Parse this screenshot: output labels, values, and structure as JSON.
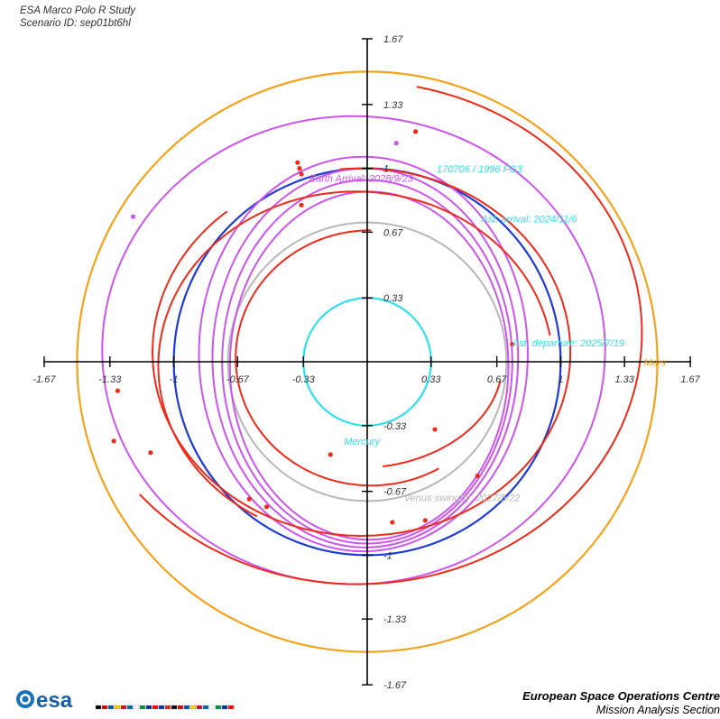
{
  "header": {
    "study": "ESA Marco Polo R Study",
    "scenario": "Scenario ID: sep01bt6hl"
  },
  "footer": {
    "org": "European Space Operations Centre",
    "section": "Mission Analysis Section",
    "logo_text": "esa"
  },
  "colors": {
    "mars": "#f5a21b",
    "earth": "#1f3ad6",
    "venus": "#b8b8b8",
    "mercury": "#30e0ee",
    "transfer": "#ee2a1a",
    "asteroid": "#cc55ee",
    "axis": "#000000"
  },
  "chart_data": {
    "type": "line",
    "xlim": [
      -1.67,
      1.67
    ],
    "ylim": [
      -1.67,
      1.67
    ],
    "grid": false,
    "x_ticks": [
      "-1.67",
      "-1.33",
      "-1",
      "-0.67",
      "-0.33",
      "0.33",
      "0.67",
      "1",
      "1.33",
      "1.67"
    ],
    "y_ticks": [
      "1.67",
      "1.33",
      "1",
      "0.67",
      "0.33",
      "-0.33",
      "-0.67",
      "-1",
      "-1.33",
      "-1.67"
    ],
    "x_tick_values": [
      -1.67,
      -1.33,
      -1.0,
      -0.67,
      -0.33,
      0.33,
      0.67,
      1.0,
      1.33,
      1.67
    ],
    "y_tick_values": [
      1.67,
      1.33,
      1.0,
      0.67,
      0.33,
      -0.33,
      -0.67,
      -1.0,
      -1.33,
      -1.67
    ],
    "planet_orbits": [
      {
        "name": "Mars",
        "radius": 1.5
      },
      {
        "name": "Earth",
        "radius": 1.0
      },
      {
        "name": "Venus",
        "radius": 0.72
      },
      {
        "name": "Mercury",
        "radius": 0.33
      }
    ],
    "transfer_arcs": [
      {
        "cx": -0.05,
        "cy": 0.15,
        "rx": 1.47,
        "ry": 1.3,
        "start_deg": 220,
        "end_deg": 78
      },
      {
        "cx": -0.03,
        "cy": 0.05,
        "rx": 1.08,
        "ry": 0.95,
        "start_deg": 130,
        "end_deg": 96
      },
      {
        "cx": -0.06,
        "cy": -0.02,
        "rx": 1.02,
        "ry": 0.9,
        "start_deg": 10,
        "end_deg": 240
      },
      {
        "cx": 0.02,
        "cy": 0.02,
        "rx": 0.7,
        "ry": 0.66,
        "start_deg": 90,
        "end_deg": 300
      },
      {
        "cx": -0.05,
        "cy": 0.0,
        "rx": 0.75,
        "ry": 0.55,
        "start_deg": 280,
        "end_deg": 350
      }
    ],
    "asteroid_orbits": [
      {
        "cx": -0.07,
        "cy": 0.06,
        "rx": 1.3,
        "ry": 1.21
      },
      {
        "cx": -0.02,
        "cy": 0.04,
        "rx": 0.85,
        "ry": 1.02
      },
      {
        "cx": -0.01,
        "cy": 0.02,
        "rx": 0.79,
        "ry": 0.98
      },
      {
        "cx": 0.0,
        "cy": 0.0,
        "rx": 0.75,
        "ry": 0.94
      },
      {
        "cx": 0.01,
        "cy": -0.02,
        "rx": 0.72,
        "ry": 0.9
      }
    ],
    "event_markers": [
      {
        "x": 0.25,
        "y": 1.19,
        "color": "transfer"
      },
      {
        "x": -0.36,
        "y": 1.03,
        "color": "transfer"
      },
      {
        "x": -0.35,
        "y": 1.0,
        "color": "transfer"
      },
      {
        "x": -0.34,
        "y": 0.97,
        "color": "transfer"
      },
      {
        "x": -0.34,
        "y": 0.81,
        "color": "transfer"
      },
      {
        "x": -1.29,
        "y": -0.15,
        "color": "transfer"
      },
      {
        "x": -1.31,
        "y": -0.41,
        "color": "transfer"
      },
      {
        "x": 0.75,
        "y": 0.09,
        "color": "transfer"
      },
      {
        "x": 0.35,
        "y": -0.35,
        "color": "transfer"
      },
      {
        "x": -0.19,
        "y": -0.48,
        "color": "transfer"
      },
      {
        "x": -0.61,
        "y": -0.71,
        "color": "transfer"
      },
      {
        "x": -0.52,
        "y": -0.75,
        "color": "transfer"
      },
      {
        "x": 0.57,
        "y": -0.59,
        "color": "transfer"
      },
      {
        "x": 0.13,
        "y": -0.83,
        "color": "transfer"
      },
      {
        "x": 0.3,
        "y": -0.82,
        "color": "transfer"
      },
      {
        "x": -1.12,
        "y": -0.47,
        "color": "transfer"
      },
      {
        "x": -1.21,
        "y": 0.75,
        "color": "asteroid"
      },
      {
        "x": 0.15,
        "y": 1.13,
        "color": "asteroid"
      }
    ],
    "annotations": [
      {
        "text": "170706 / 1996 FG3",
        "x": 0.36,
        "y": 0.98,
        "color": "mercury"
      },
      {
        "text": "Earth Arrival: 2028/9/23",
        "x": -0.3,
        "y": 0.93,
        "color": "asteroid"
      },
      {
        "text": "Ast. arrival: 2024/11/6",
        "x": 0.59,
        "y": 0.72,
        "color": "mercury"
      },
      {
        "text": "Ast. departure: 2025/7/19",
        "x": 0.75,
        "y": 0.08,
        "color": "mercury"
      },
      {
        "text": "Mars",
        "x": 1.43,
        "y": -0.02,
        "color": "mars"
      },
      {
        "text": "Mercury",
        "x": -0.12,
        "y": -0.43,
        "color": "mercury"
      },
      {
        "text": "Venus swingby: 2027/5/22",
        "x": 0.19,
        "y": -0.72,
        "color": "venus"
      }
    ]
  }
}
